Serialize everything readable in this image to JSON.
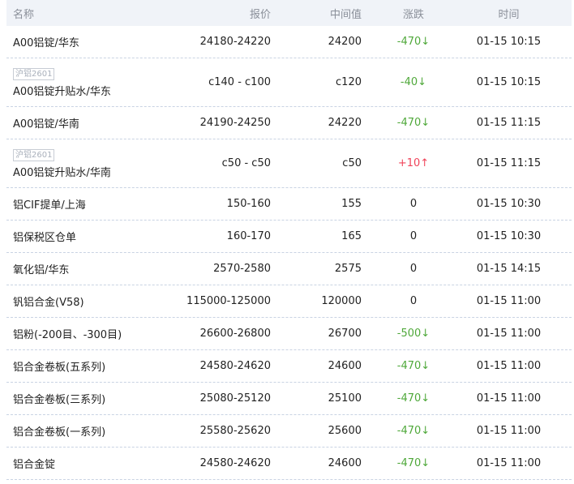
{
  "colors": {
    "down": "#4fa83a",
    "up": "#f0445a",
    "header_bg": "#f0f3f8"
  },
  "headers": {
    "name": "名称",
    "price": "报价",
    "mid": "中间值",
    "change": "涨跌",
    "time": "时间"
  },
  "rows": [
    {
      "tag": "",
      "name": "A00铝锭/华东",
      "price": "24180-24220",
      "mid": "24200",
      "change": "-470",
      "dir": "down",
      "time": "01-15 10:15"
    },
    {
      "tag": "沪铝2601",
      "name": "A00铝锭升贴水/华东",
      "price": "c140 - c100",
      "mid": "c120",
      "change": "-40",
      "dir": "down",
      "time": "01-15 10:15"
    },
    {
      "tag": "",
      "name": "A00铝锭/华南",
      "price": "24190-24250",
      "mid": "24220",
      "change": "-470",
      "dir": "down",
      "time": "01-15 11:15"
    },
    {
      "tag": "沪铝2601",
      "name": "A00铝锭升贴水/华南",
      "price": "c50 - c50",
      "mid": "c50",
      "change": "+10",
      "dir": "up",
      "time": "01-15 11:15"
    },
    {
      "tag": "",
      "name": "铝CIF提单/上海",
      "price": "150-160",
      "mid": "155",
      "change": "0",
      "dir": "flat",
      "time": "01-15 10:30"
    },
    {
      "tag": "",
      "name": "铝保税区仓单",
      "price": "160-170",
      "mid": "165",
      "change": "0",
      "dir": "flat",
      "time": "01-15 10:30"
    },
    {
      "tag": "",
      "name": "氧化铝/华东",
      "price": "2570-2580",
      "mid": "2575",
      "change": "0",
      "dir": "flat",
      "time": "01-15 14:15"
    },
    {
      "tag": "",
      "name": "钒铝合金(V58)",
      "price": "115000-125000",
      "mid": "120000",
      "change": "0",
      "dir": "flat",
      "time": "01-15 11:00"
    },
    {
      "tag": "",
      "name": "铝粉(-200目、-300目)",
      "price": "26600-26800",
      "mid": "26700",
      "change": "-500",
      "dir": "down",
      "time": "01-15 11:00"
    },
    {
      "tag": "",
      "name": "铝合金卷板(五系列)",
      "price": "24580-24620",
      "mid": "24600",
      "change": "-470",
      "dir": "down",
      "time": "01-15 11:00"
    },
    {
      "tag": "",
      "name": "铝合金卷板(三系列)",
      "price": "25080-25120",
      "mid": "25100",
      "change": "-470",
      "dir": "down",
      "time": "01-15 11:00"
    },
    {
      "tag": "",
      "name": "铝合金卷板(一系列)",
      "price": "25580-25620",
      "mid": "25600",
      "change": "-470",
      "dir": "down",
      "time": "01-15 11:00"
    },
    {
      "tag": "",
      "name": "铝合金锭",
      "price": "24580-24620",
      "mid": "24600",
      "change": "-470",
      "dir": "down",
      "time": "01-15 11:00"
    }
  ]
}
